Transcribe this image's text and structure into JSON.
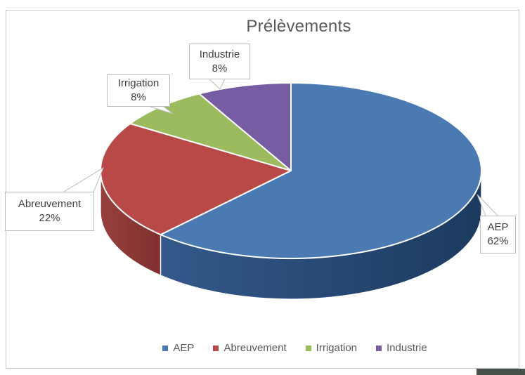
{
  "chart_data": {
    "type": "pie",
    "style": "3d",
    "title": "Prélèvements",
    "start_angle_deg": 0,
    "direction": "clockwise",
    "legend_position": "bottom",
    "series": [
      {
        "name": "AEP",
        "value": 62,
        "label": "62%",
        "color": "#4B79B1",
        "side_color": "#34598B",
        "side_color2": "#1B3A5E"
      },
      {
        "name": "Abreuvement",
        "value": 22,
        "label": "22%",
        "color": "#B94946",
        "side_color": "#97403D",
        "side_color2": "#7F302E"
      },
      {
        "name": "Irrigation",
        "value": 8,
        "label": "8%",
        "color": "#9CBB5E",
        "side_color": "#6F8A3C"
      },
      {
        "name": "Industrie",
        "value": 8,
        "label": "8%",
        "color": "#765CA3",
        "side_color": "#54407A"
      }
    ]
  },
  "window": {
    "corner_bar_color": "#49514B"
  }
}
